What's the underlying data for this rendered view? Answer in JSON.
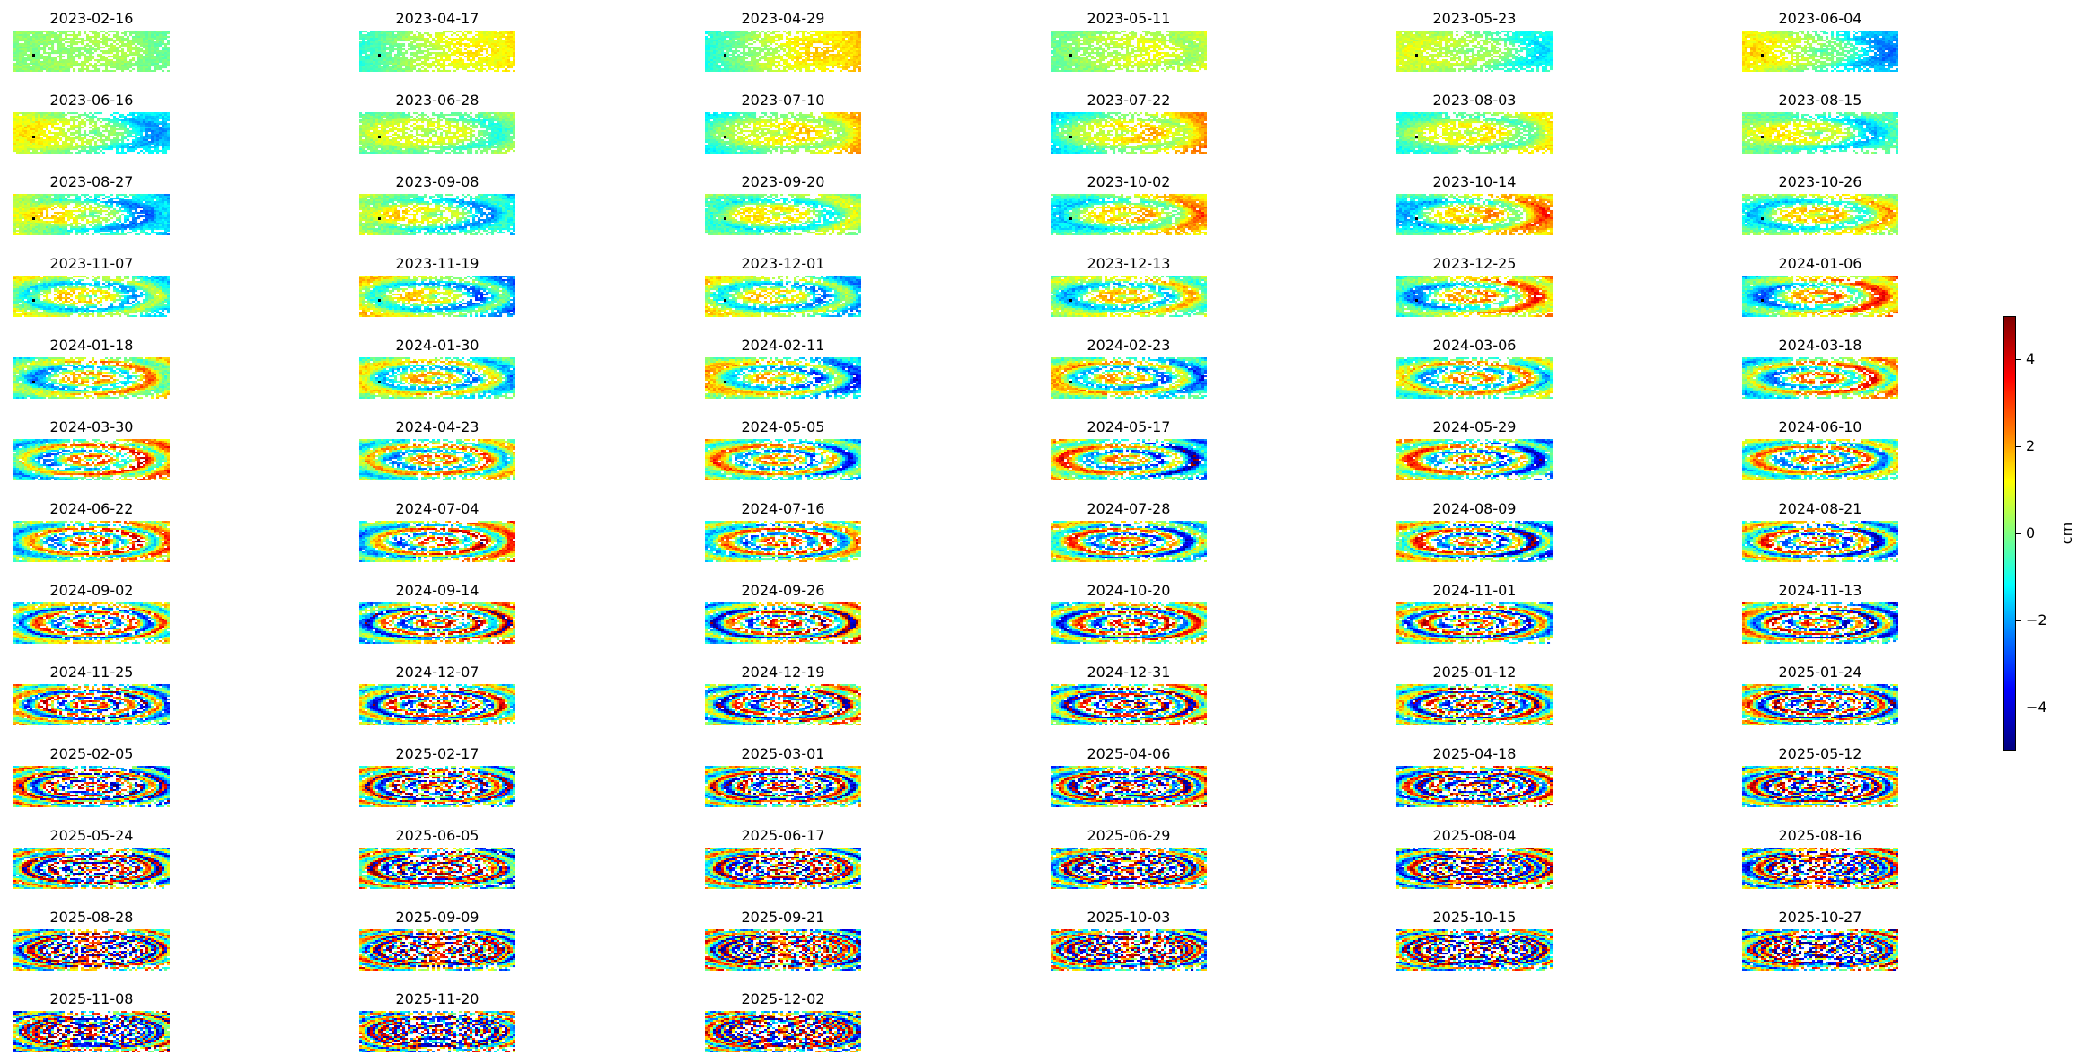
{
  "chart_data": {
    "type": "heatmap",
    "panel_titles": [
      "2023-02-16",
      "2023-04-17",
      "2023-04-29",
      "2023-05-11",
      "2023-05-23",
      "2023-06-04",
      "2023-06-16",
      "2023-06-28",
      "2023-07-10",
      "2023-07-22",
      "2023-08-03",
      "2023-08-15",
      "2023-08-27",
      "2023-09-08",
      "2023-09-20",
      "2023-10-02",
      "2023-10-14",
      "2023-10-26",
      "2023-11-07",
      "2023-11-19",
      "2023-12-01",
      "2023-12-13",
      "2023-12-25",
      "2024-01-06",
      "2024-01-18",
      "2024-01-30",
      "2024-02-11",
      "2024-02-23",
      "2024-03-06",
      "2024-03-18",
      "2024-03-30",
      "2024-04-23",
      "2024-05-05",
      "2024-05-17",
      "2024-05-29",
      "2024-06-10",
      "2024-06-22",
      "2024-07-04",
      "2024-07-16",
      "2024-07-28",
      "2024-08-09",
      "2024-08-21",
      "2024-09-02",
      "2024-09-14",
      "2024-09-26",
      "2024-10-20",
      "2024-11-01",
      "2024-11-13",
      "2024-11-25",
      "2024-12-07",
      "2024-12-19",
      "2024-12-31",
      "2025-01-12",
      "2025-01-24",
      "2025-02-05",
      "2025-02-17",
      "2025-03-01",
      "2025-04-06",
      "2025-04-18",
      "2025-05-12",
      "2025-05-24",
      "2025-06-05",
      "2025-06-17",
      "2025-06-29",
      "2025-08-04",
      "2025-08-16",
      "2025-08-28",
      "2025-09-09",
      "2025-09-21",
      "2025-10-03",
      "2025-10-15",
      "2025-10-27",
      "2025-11-08",
      "2025-11-20",
      "2025-12-02"
    ],
    "grid_columns": 6,
    "colorbar": {
      "label": "cm",
      "range": [
        -5,
        5
      ],
      "ticks": [
        4,
        2,
        0,
        -2,
        -4
      ],
      "tick_labels": [
        "4",
        "2",
        "0",
        "−2",
        "−4"
      ],
      "colormap": "jet"
    },
    "axes": "off"
  },
  "colors": {
    "colormap_stops": [
      "#000080",
      "#0000ff",
      "#0080ff",
      "#00ffff",
      "#80ff80",
      "#ffff00",
      "#ff8000",
      "#ff0000",
      "#800000"
    ],
    "masked": "#ffffff",
    "reference_point": "#000000"
  }
}
